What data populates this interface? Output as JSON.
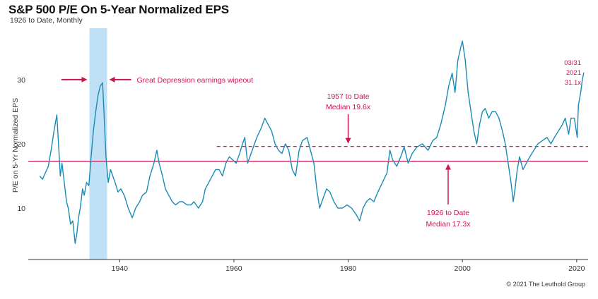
{
  "title": "S&P 500 P/E On 5-Year Normalized EPS",
  "subtitle": "1926 to Date, Monthly",
  "footer": "© 2021 The Leuthold Group",
  "chart_data": {
    "type": "line",
    "title": "S&P 500 P/E On 5-Year Normalized EPS",
    "subtitle": "1926 to Date, Monthly",
    "xlabel": "",
    "ylabel": "P/E on 5-Yr Normalized EPS",
    "xlim": [
      1924,
      2022
    ],
    "ylim": [
      2,
      38
    ],
    "x_ticks": [
      1940,
      1960,
      1980,
      2000,
      2020
    ],
    "y_ticks": [
      10,
      20,
      30
    ],
    "grid": false,
    "colors": {
      "line": "#1a8bb5",
      "accent": "#c8174c",
      "shade": "#bfe0f5"
    },
    "shaded_region": {
      "x": [
        1934.7,
        1937.8
      ]
    },
    "series": [
      {
        "x": [
          1926,
          1926.5,
          1927,
          1927.5,
          1928,
          1928.5,
          1929,
          1929.3,
          1929.6,
          1929.9,
          1930.3,
          1930.7,
          1931,
          1931.4,
          1931.8,
          1932.2,
          1932.5,
          1932.8,
          1933.1,
          1933.5,
          1933.8,
          1934.2,
          1934.6,
          1935,
          1935.4,
          1935.8,
          1936.2,
          1936.6,
          1937,
          1937.3,
          1937.6,
          1938,
          1938.4,
          1938.8,
          1939.2,
          1939.7,
          1940.2,
          1940.8,
          1941.5,
          1942.2,
          1942.8,
          1943.5,
          1944,
          1944.7,
          1945.3,
          1946,
          1946.5,
          1946.9,
          1947.5,
          1948,
          1948.6,
          1949.2,
          1949.8,
          1950.5,
          1951,
          1951.8,
          1952.5,
          1953,
          1953.8,
          1954.5,
          1955,
          1955.6,
          1956.2,
          1956.8,
          1957.4,
          1958,
          1958.6,
          1959.2,
          1959.8,
          1960.4,
          1961,
          1961.5,
          1961.9,
          1962.4,
          1962.8,
          1963.4,
          1964,
          1964.8,
          1965.4,
          1966,
          1966.6,
          1967.2,
          1967.8,
          1968.4,
          1969,
          1969.6,
          1970.2,
          1970.8,
          1971.4,
          1972,
          1972.8,
          1973.4,
          1974,
          1974.5,
          1975,
          1975.6,
          1976.2,
          1976.8,
          1977.5,
          1978.2,
          1979,
          1979.8,
          1980.6,
          1981.4,
          1982,
          1982.6,
          1983.2,
          1983.8,
          1984.5,
          1985.2,
          1986,
          1986.8,
          1987.3,
          1987.8,
          1988.5,
          1989.2,
          1989.8,
          1990.5,
          1991.2,
          1992,
          1993,
          1994,
          1994.8,
          1995.5,
          1996.2,
          1997,
          1997.6,
          1998.2,
          1998.7,
          1999.2,
          1999.7,
          2000,
          2000.5,
          2001,
          2001.5,
          2002,
          2002.5,
          2003,
          2003.5,
          2004,
          2004.6,
          2005.2,
          2005.8,
          2006.4,
          2007,
          2007.5,
          2008,
          2008.5,
          2008.9,
          2009.2,
          2009.6,
          2010,
          2010.6,
          2011.2,
          2011.8,
          2012.5,
          2013.2,
          2014,
          2014.8,
          2015.5,
          2016.1,
          2016.8,
          2017.5,
          2018,
          2018.6,
          2019,
          2019.6,
          2020.1,
          2020.3,
          2020.7,
          2021,
          2021.25
        ],
        "values": [
          15,
          14.5,
          15.5,
          16.5,
          19,
          22,
          24.5,
          20,
          15,
          17,
          14,
          11,
          10,
          7.5,
          8,
          4.5,
          6,
          8.5,
          10,
          13,
          12,
          14,
          13.5,
          18,
          22,
          25,
          27.5,
          29,
          29.5,
          24,
          18,
          14,
          16,
          15,
          14,
          12.5,
          13,
          12,
          10,
          8.5,
          10,
          11,
          12,
          12.5,
          15,
          17,
          19,
          17,
          15,
          13,
          12,
          11,
          10.5,
          11,
          11,
          10.5,
          10.5,
          11,
          10,
          11,
          13,
          14,
          15,
          16,
          16,
          15,
          17,
          18,
          17.5,
          17,
          18.5,
          20,
          21,
          17,
          18,
          19.5,
          21,
          22.5,
          24,
          23,
          22,
          20,
          19,
          18.5,
          20,
          19,
          16,
          15,
          19,
          20.5,
          21,
          19,
          17,
          13,
          10,
          11.5,
          13,
          12.5,
          11,
          10,
          10,
          10.5,
          10,
          9,
          8,
          10,
          11,
          11.5,
          11,
          12.5,
          14,
          15.5,
          19,
          17.5,
          16.5,
          18,
          19.5,
          17,
          18.5,
          19.5,
          20,
          19,
          20.5,
          21,
          23,
          26,
          29,
          31,
          28,
          33,
          35,
          36,
          33,
          28,
          25,
          22,
          20,
          23,
          25,
          25.5,
          24,
          25,
          25,
          24,
          22,
          20,
          17,
          14,
          11,
          13,
          16,
          18,
          16,
          17,
          18,
          19,
          20,
          20.5,
          21,
          20,
          21,
          22,
          23,
          24,
          21.5,
          24,
          24,
          21,
          26,
          28,
          30,
          31.1
        ]
      }
    ],
    "reference_lines": [
      {
        "label": "1926 to Date",
        "sublabel": "Median 17.3x",
        "value": 17.3,
        "x_start": 1924,
        "x_end": 2022,
        "style": "solid"
      },
      {
        "label": "1957 to Date",
        "sublabel": "Median 19.6x",
        "value": 19.6,
        "x_start": 1957,
        "x_end": 2022,
        "style": "dashed"
      }
    ],
    "annotations": {
      "great_depression": "Great Depression earnings wipeout",
      "last_point": {
        "date": "03/31",
        "year": "2021",
        "value": "31.1x"
      }
    }
  }
}
